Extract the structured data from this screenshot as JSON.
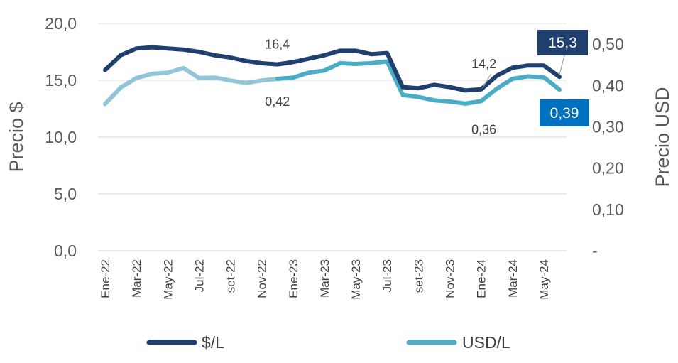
{
  "chart_data": {
    "type": "line",
    "x": [
      "Ene-22",
      "Feb-22",
      "Mar-22",
      "Abr-22",
      "May-22",
      "Jun-22",
      "Jul-22",
      "Ago-22",
      "set-22",
      "Oct-22",
      "Nov-22",
      "Dic-22",
      "Ene-23",
      "Feb-23",
      "Mar-23",
      "Abr-23",
      "May-23",
      "Jun-23",
      "Jul-23",
      "Ago-23",
      "set-23",
      "Oct-23",
      "Nov-23",
      "Dic-23",
      "Ene-24",
      "Feb-24",
      "Mar-24",
      "Abr-24",
      "May-24",
      "Jun-24"
    ],
    "x_tick_labels": [
      "Ene-22",
      "Mar-22",
      "May-22",
      "Jul-22",
      "set-22",
      "Nov-22",
      "Ene-23",
      "Mar-23",
      "May-23",
      "Jul-23",
      "set-23",
      "Nov-23",
      "Ene-24",
      "Mar-24",
      "May-24"
    ],
    "series": [
      {
        "name": "$/L",
        "axis": "left",
        "color": "#1F3F6F",
        "values": [
          15.9,
          17.2,
          17.8,
          17.9,
          17.8,
          17.7,
          17.5,
          17.2,
          17.0,
          16.7,
          16.5,
          16.4,
          16.6,
          16.9,
          17.2,
          17.6,
          17.6,
          17.3,
          17.4,
          14.4,
          14.3,
          14.6,
          14.4,
          14.1,
          14.2,
          15.4,
          16.1,
          16.3,
          16.3,
          15.3
        ]
      },
      {
        "name": "USD/L",
        "axis": "right",
        "color": "#4BACC6",
        "light_color": "#93C5D8",
        "values": [
          0.355,
          0.395,
          0.418,
          0.428,
          0.431,
          0.442,
          0.418,
          0.419,
          0.412,
          0.406,
          0.412,
          0.416,
          0.419,
          0.431,
          0.436,
          0.454,
          0.452,
          0.454,
          0.458,
          0.377,
          0.372,
          0.364,
          0.361,
          0.356,
          0.362,
          0.392,
          0.416,
          0.422,
          0.42,
          0.39
        ]
      }
    ],
    "left_axis": {
      "title": "Precio $",
      "min": 0,
      "max": 20,
      "ticks": [
        "0,0",
        "5,0",
        "10,0",
        "15,0",
        "20,0"
      ]
    },
    "right_axis": {
      "title": "Precio USD",
      "min": 0,
      "max": 0.55,
      "ticks": [
        "-",
        "0,10",
        "0,20",
        "0,30",
        "0,40",
        "0,50"
      ]
    },
    "annotations": [
      {
        "series": 0,
        "index": 11,
        "text": "16,4"
      },
      {
        "series": 1,
        "index": 11,
        "text": "0,42"
      },
      {
        "series": 0,
        "index": 24,
        "text": "14,2"
      },
      {
        "series": 1,
        "index": 24,
        "text": "0,36"
      }
    ],
    "callouts": [
      {
        "series": 0,
        "index": 29,
        "text": "15,3",
        "bg": "#1F3F6F"
      },
      {
        "series": 1,
        "index": 29,
        "text": "0,39",
        "bg": "#0070C0"
      }
    ],
    "legend": {
      "position": "bottom",
      "items": [
        "$/L",
        "USD/L"
      ]
    },
    "grid": "horizontal"
  }
}
